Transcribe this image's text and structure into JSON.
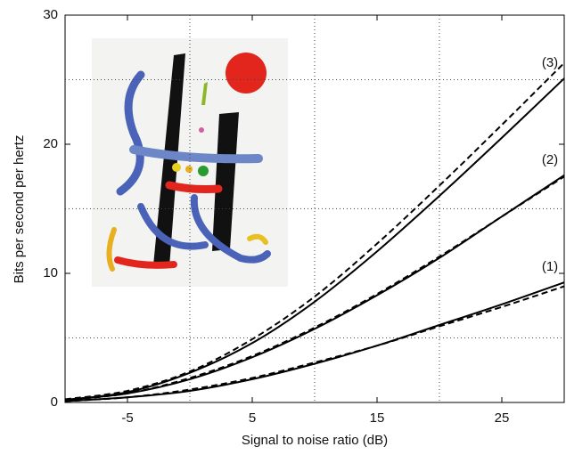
{
  "chart_data": {
    "type": "line",
    "xlabel": "Signal to noise ratio (dB)",
    "ylabel": "Bits per second per hertz",
    "x": [
      -10,
      -5,
      0,
      5,
      10,
      15,
      20,
      25,
      30
    ],
    "series": [
      {
        "name": "(3)",
        "color": "#000000",
        "dashed": false,
        "values": [
          0.2,
          0.8,
          2.3,
          4.6,
          7.8,
          11.7,
          16.0,
          20.5,
          25.1
        ]
      },
      {
        "color": "#000000",
        "dashed": true,
        "values": [
          0.25,
          0.9,
          2.4,
          4.9,
          8.2,
          12.3,
          16.8,
          21.5,
          26.3
        ]
      },
      {
        "name": "(2)",
        "color": "#000000",
        "dashed": false,
        "values": [
          0.2,
          0.7,
          1.8,
          3.5,
          5.7,
          8.3,
          11.2,
          14.4,
          17.6
        ]
      },
      {
        "color": "#000000",
        "dashed": true,
        "values": [
          0.2,
          0.7,
          1.9,
          3.6,
          5.8,
          8.4,
          11.3,
          14.4,
          17.5
        ]
      },
      {
        "name": "(1)",
        "color": "#000000",
        "dashed": false,
        "values": [
          0.1,
          0.4,
          0.9,
          1.8,
          3.0,
          4.4,
          6.0,
          7.6,
          9.3
        ]
      },
      {
        "color": "#000000",
        "dashed": true,
        "values": [
          0.1,
          0.4,
          1.0,
          1.9,
          3.1,
          4.4,
          5.9,
          7.4,
          9.0
        ]
      }
    ],
    "xlim": [
      -10,
      30
    ],
    "ylim": [
      0,
      30
    ],
    "xticks": [
      -5,
      5,
      15,
      25
    ],
    "yticks": [
      0,
      10,
      20,
      30
    ],
    "xgrid": [
      0,
      10,
      20
    ],
    "ygrid": [
      5,
      15,
      25
    ],
    "grid": true
  }
}
